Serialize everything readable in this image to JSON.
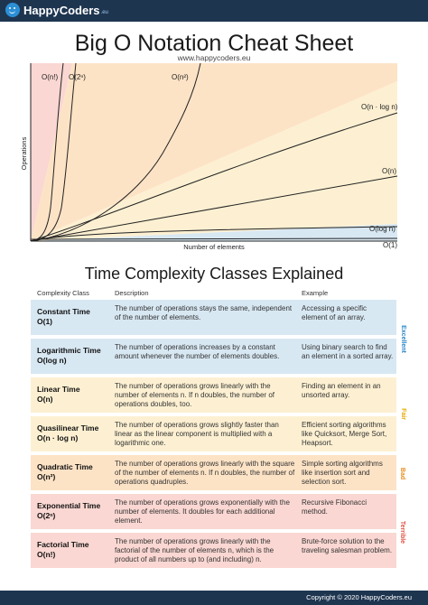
{
  "brand": {
    "name": "HappyCoders",
    "tld": ".eu",
    "logo_icon": "smiley-icon"
  },
  "header": {
    "title": "Big O Notation Cheat Sheet",
    "url": "www.happycoders.eu"
  },
  "chart_data": {
    "type": "line",
    "title": "",
    "xlabel": "Number of elements",
    "ylabel": "Operations",
    "series": [
      {
        "name": "O(n!)"
      },
      {
        "name": "O(2ⁿ)"
      },
      {
        "name": "O(n²)"
      },
      {
        "name": "O(n · log n)"
      },
      {
        "name": "O(n)"
      },
      {
        "name": "O(log n)"
      },
      {
        "name": "O(1)"
      }
    ],
    "regions": [
      {
        "label": "Excellent",
        "color": "#d8e8f3"
      },
      {
        "label": "Fair",
        "color": "#fdf0d2"
      },
      {
        "label": "Bad",
        "color": "#fde3c6"
      },
      {
        "label": "Terrible",
        "color": "#fad7d2"
      }
    ]
  },
  "table": {
    "section_title": "Time Complexity Classes Explained",
    "headers": {
      "complexity_class": "Complexity Class",
      "description": "Description",
      "example": "Example"
    },
    "rows": [
      {
        "name": "Constant Time",
        "notation": "O(1)",
        "color": "#d8e8f3",
        "description": "The number of operations stays the same, independent of the number of elements.",
        "example": "Accessing a specific element of an array."
      },
      {
        "name": "Logarithmic Time",
        "notation": "O(log n)",
        "color": "#d8e8f3",
        "description": "The number of operations increases by a constant amount whenever the number of elements doubles.",
        "example": "Using binary search to find an element in a sorted array."
      },
      {
        "name": "Linear Time",
        "notation": "O(n)",
        "color": "#fdf0d2",
        "description": "The number of operations grows linearly with the number of elements n. If n doubles, the number of operations doubles, too.",
        "example": "Finding an element in an unsorted array."
      },
      {
        "name": "Quasilinear Time",
        "notation": "O(n · log n)",
        "color": "#fdf0d2",
        "description": "The number of operations grows slightly faster than linear as the linear component is multiplied with a logarithmic one.",
        "example": "Efficient sorting algorithms like Quicksort, Merge Sort, Heapsort."
      },
      {
        "name": "Quadratic Time",
        "notation": "O(n²)",
        "color": "#fde3c6",
        "description": "The number of operations grows linearly with the square of the number of elements n. If n doubles, the number of operations quadruples.",
        "example": "Simple sorting algorithms like insertion sort and selection sort."
      },
      {
        "name": "Exponential Time",
        "notation": "O(2ⁿ)",
        "color": "#fad7d2",
        "description": "The number of operations grows exponentially with the number of elements. It doubles for each additional element.",
        "example": "Recursive Fibonacci method."
      },
      {
        "name": "Factorial Time",
        "notation": "O(n!)",
        "color": "#fad7d2",
        "description": "The number of operations grows linearly with the factorial of the number of elements n, which is the product of all numbers up to (and including) n.",
        "example": "Brute-force solution to the traveling salesman problem."
      }
    ],
    "categories": [
      {
        "label": "Excellent",
        "color": "#2a86c8"
      },
      {
        "label": "Fair",
        "color": "#e6a800"
      },
      {
        "label": "Bad",
        "color": "#e88a1a"
      },
      {
        "label": "Terrible",
        "color": "#e05040"
      }
    ]
  },
  "footer": {
    "copyright": "Copyright © 2020 HappyCoders.eu"
  }
}
